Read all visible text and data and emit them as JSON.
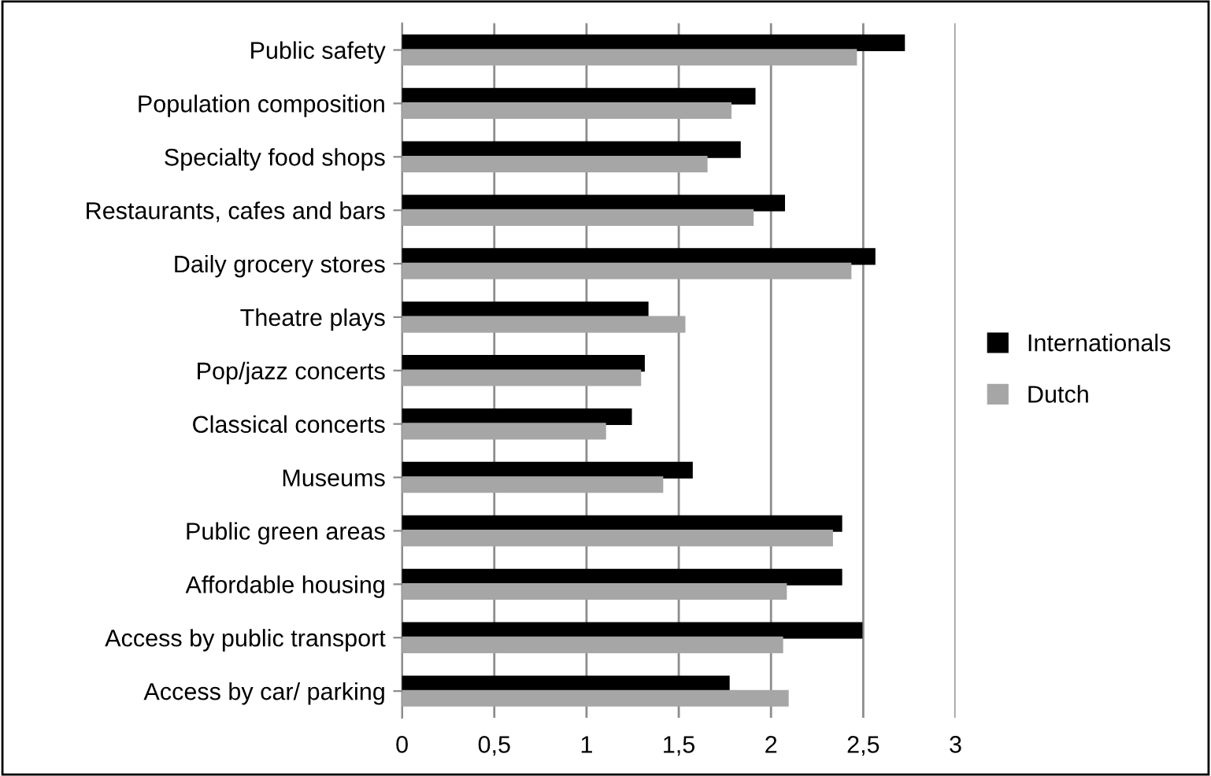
{
  "chart_data": {
    "type": "bar",
    "orientation": "horizontal",
    "categories": [
      "Public safety",
      "Population composition",
      "Specialty food shops",
      "Restaurants, cafes and bars",
      "Daily grocery stores",
      "Theatre plays",
      "Pop/jazz concerts",
      "Classical concerts",
      "Museums",
      "Public green areas",
      "Affordable housing",
      "Access by public transport",
      "Access by car/ parking"
    ],
    "series": [
      {
        "name": "Internationals",
        "color": "#000000",
        "values": [
          2.72,
          1.91,
          1.83,
          2.07,
          2.56,
          1.33,
          1.31,
          1.24,
          1.57,
          2.38,
          2.38,
          2.49,
          1.77
        ]
      },
      {
        "name": "Dutch",
        "color": "#a6a6a6",
        "values": [
          2.46,
          1.78,
          1.65,
          1.9,
          2.43,
          1.53,
          1.29,
          1.1,
          1.41,
          2.33,
          2.08,
          2.06,
          2.09
        ]
      }
    ],
    "xlim": [
      0,
      3
    ],
    "xticks": [
      {
        "value": 0,
        "label": "0"
      },
      {
        "value": 0.5,
        "label": "0,5"
      },
      {
        "value": 1,
        "label": "1"
      },
      {
        "value": 1.5,
        "label": "1,5"
      },
      {
        "value": 2,
        "label": "2"
      },
      {
        "value": 2.5,
        "label": "2,5"
      },
      {
        "value": 3,
        "label": "3"
      }
    ],
    "grid": "x",
    "legend": "right"
  }
}
